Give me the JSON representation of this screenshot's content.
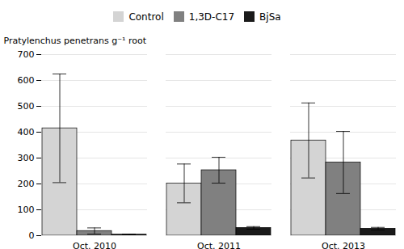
{
  "chart_data": {
    "type": "bar",
    "categories": [
      "Oct. 2010",
      "Oct. 2011",
      "Oct. 2013"
    ],
    "series": [
      {
        "name": "Control",
        "color": "#d4d4d4",
        "values": [
          415,
          202,
          368
        ],
        "errors": [
          210,
          75,
          145
        ]
      },
      {
        "name": "1,3D-C17",
        "color": "#808080",
        "values": [
          18,
          253,
          283
        ],
        "errors": [
          12,
          50,
          120
        ]
      },
      {
        "name": "BjSa",
        "color": "#1a1a1a",
        "values": [
          4,
          30,
          27
        ],
        "errors": [
          2,
          5,
          5
        ]
      }
    ],
    "ylabel": "Pratylenchus penetrans g⁻¹ root",
    "ylim": [
      0,
      700
    ],
    "yticks": [
      0,
      100,
      200,
      300,
      400,
      500,
      600,
      700
    ],
    "grid": true,
    "legend": "top"
  }
}
